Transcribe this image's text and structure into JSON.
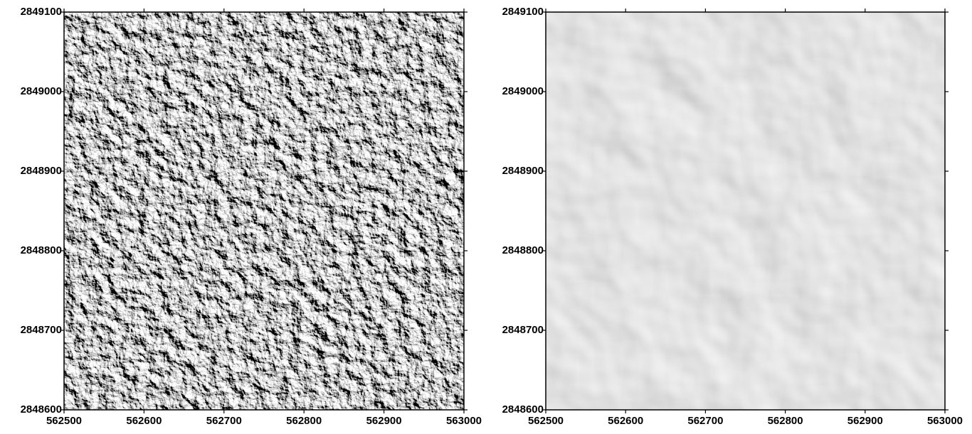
{
  "chart_data": [
    {
      "type": "hillshade",
      "xlim": [
        562500,
        563000
      ],
      "ylim": [
        2848600,
        2849100
      ],
      "xticks": [
        562500,
        562600,
        562700,
        562800,
        562900,
        563000
      ],
      "yticks": [
        2848600,
        2848700,
        2848800,
        2848900,
        2849000,
        2849100
      ]
    },
    {
      "type": "hillshade",
      "xlim": [
        562500,
        563000
      ],
      "ylim": [
        2848600,
        2849100
      ],
      "xticks": [
        562500,
        562600,
        562700,
        562800,
        562900,
        563000
      ],
      "yticks": [
        2848600,
        2848700,
        2848800,
        2848900,
        2849000,
        2849100
      ]
    }
  ]
}
